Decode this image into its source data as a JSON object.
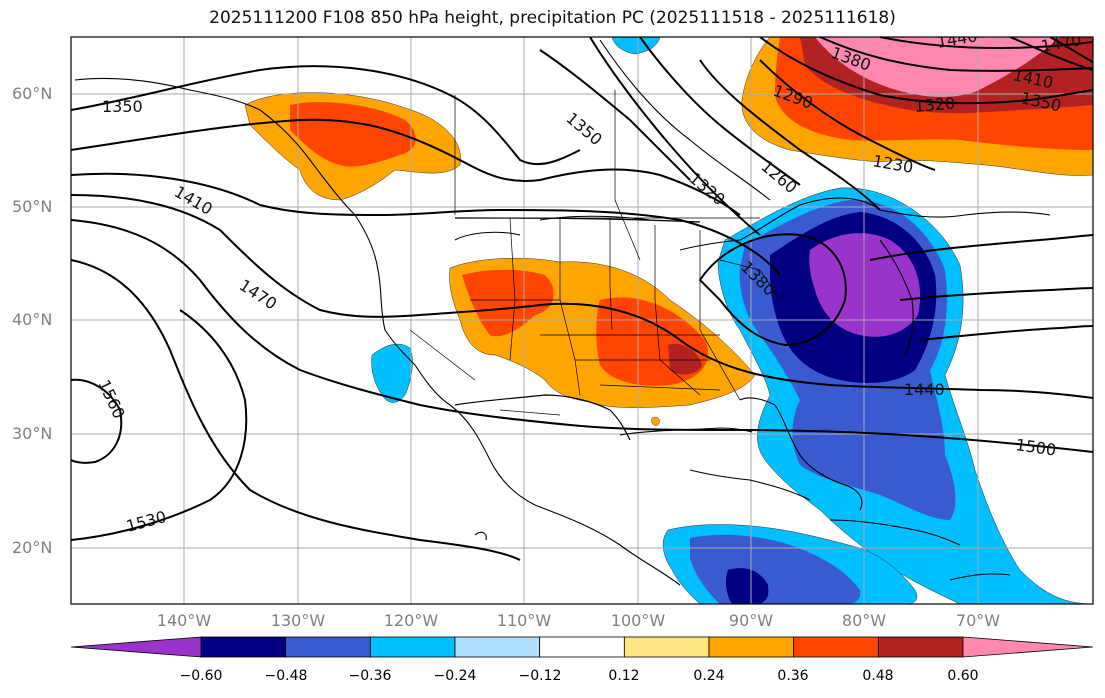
{
  "title": "2025111200 F108 850 hPa height, precipitation PC (2025111518 - 2025111618)",
  "lat_labels": [
    "60°N",
    "50°N",
    "40°N",
    "30°N",
    "20°N"
  ],
  "lon_labels": [
    "140°W",
    "130°W",
    "120°W",
    "110°W",
    "100°W",
    "90°W",
    "80°W",
    "70°W"
  ],
  "colorbar": {
    "ticks": [
      "−0.60",
      "−0.48",
      "−0.36",
      "−0.24",
      "−0.12",
      "0.12",
      "0.24",
      "0.36",
      "0.48",
      "0.60"
    ],
    "colors": [
      "#9933cc",
      "#000080",
      "#3a5bd0",
      "#00bfff",
      "#b0e0ff",
      "#ffffff",
      "#ffe680",
      "#ffa500",
      "#ff4500",
      "#b22222",
      "#ff88b0"
    ]
  },
  "contour_labels": [
    "1350",
    "1350",
    "1410",
    "1470",
    "1560",
    "1530",
    "1380",
    "1290",
    "1320",
    "1260",
    "1230",
    "1320",
    "1380",
    "1440",
    "1500",
    "1410",
    "1350",
    "1440",
    "1470"
  ]
}
